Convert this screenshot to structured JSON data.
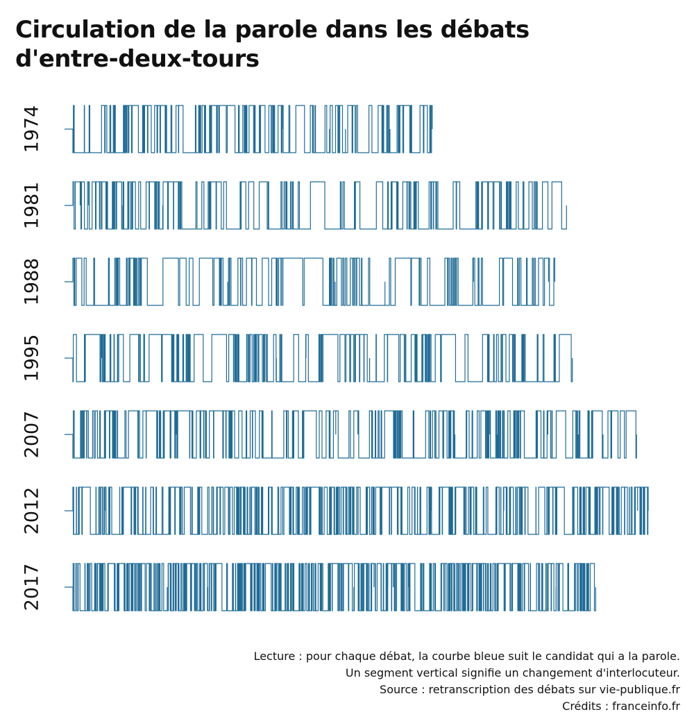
{
  "title": {
    "line1": "Circulation de la parole dans les débats",
    "line2": "d'entre-deux-tours"
  },
  "colors": {
    "line": "#1f6b96",
    "text": "#111111",
    "background": "#ffffff"
  },
  "chart_data": {
    "type": "line",
    "step": true,
    "grid": false,
    "legend": "none",
    "series": [
      {
        "name": "1974",
        "changes": 160,
        "length": 0.63,
        "seed": 1974
      },
      {
        "name": "1981",
        "changes": 180,
        "length": 0.86,
        "seed": 1981
      },
      {
        "name": "1988",
        "changes": 150,
        "length": 0.84,
        "seed": 1988
      },
      {
        "name": "1995",
        "changes": 190,
        "length": 0.87,
        "seed": 1995
      },
      {
        "name": "2007",
        "changes": 260,
        "length": 0.98,
        "seed": 2007
      },
      {
        "name": "2012",
        "changes": 420,
        "length": 1.0,
        "seed": 2012
      },
      {
        "name": "2017",
        "changes": 560,
        "length": 0.91,
        "seed": 2017
      }
    ]
  },
  "footer": {
    "line1": "Lecture : pour chaque débat, la courbe bleue suit le candidat qui a la parole.",
    "line2": "Un segment vertical signifie un changement d'interlocuteur.",
    "line3": "Source : retranscription des débats sur vie-publique.fr",
    "line4": "Crédits : franceinfo.fr"
  }
}
